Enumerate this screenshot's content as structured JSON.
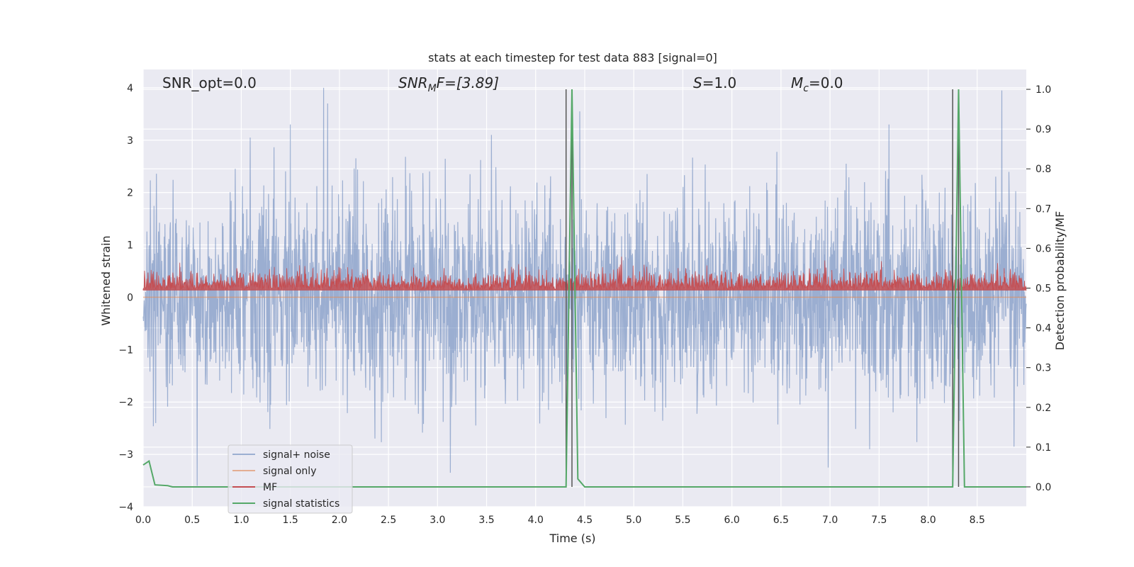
{
  "chart_data": {
    "type": "line",
    "title": "stats at each timestep for test data 883 [signal=0]",
    "xlabel": "Time (s)",
    "ylabel": "Whitened strain",
    "y2label": "Detection probability/MF",
    "xlim": [
      0.0,
      9.0
    ],
    "ylim": [
      -4,
      4.35
    ],
    "y2lim": [
      -0.05,
      1.05
    ],
    "xticks": [
      "0.0",
      "0.5",
      "1.0",
      "1.5",
      "2.0",
      "2.5",
      "3.0",
      "3.5",
      "4.0",
      "4.5",
      "5.0",
      "5.5",
      "6.0",
      "6.5",
      "7.0",
      "7.5",
      "8.0",
      "8.5"
    ],
    "yticks": [
      "−4",
      "−3",
      "−2",
      "−1",
      "0",
      "1",
      "2",
      "3",
      "4"
    ],
    "y2ticks": [
      "0.0",
      "0.1",
      "0.2",
      "0.3",
      "0.4",
      "0.5",
      "0.6",
      "0.7",
      "0.8",
      "0.9",
      "1.0"
    ],
    "grid": true,
    "legend_position": "lower-left",
    "annotations": {
      "snr_opt": "SNR_opt=0.0",
      "snr_mf": "SNR_MF=[3.89]",
      "snr_mf_base": "SNR",
      "snr_mf_sub": "M",
      "snr_mf_rest": "F=[3.89]",
      "s": "=1.0",
      "s_sym": "S",
      "mc_sym": "M",
      "mc_sub": "c",
      "mc": "=0.0"
    },
    "colors": {
      "noise": "#4c72b0",
      "signal_only": "#dd8452",
      "mf": "#c44e52",
      "stats": "#55a868",
      "vline": "#555555",
      "background": "#eaeaf2"
    },
    "series": [
      {
        "name": "signal+ noise",
        "axis": "left",
        "description_values": "dense noise, amplitude mostly within ±2, peaks to ~4.0 near t=1.84",
        "notable_peaks": [
          {
            "x": 1.84,
            "y": 4.0
          },
          {
            "x": 1.88,
            "y": 3.7
          },
          {
            "x": 1.5,
            "y": 3.3
          },
          {
            "x": 1.09,
            "y": 3.05
          },
          {
            "x": 3.55,
            "y": 3.1
          },
          {
            "x": 4.45,
            "y": 3.55
          },
          {
            "x": 7.6,
            "y": 3.3
          },
          {
            "x": 8.75,
            "y": 3.95
          },
          {
            "x": 0.55,
            "y": -3.6
          },
          {
            "x": 3.13,
            "y": -3.35
          },
          {
            "x": 6.98,
            "y": -3.25
          }
        ],
        "envelope": [
          1.5,
          -1.5
        ]
      },
      {
        "name": "signal only",
        "axis": "left",
        "x": [
          0.0,
          9.0
        ],
        "y": [
          0.0,
          0.0
        ]
      },
      {
        "name": "MF",
        "axis": "right",
        "description_values": "dense band between ~0.5 and ~0.58 on right axis",
        "band": [
          0.495,
          0.56
        ]
      },
      {
        "name": "signal statistics",
        "axis": "right",
        "x": [
          0.0,
          0.06,
          0.12,
          0.25,
          0.3,
          4.25,
          4.31,
          4.37,
          4.43,
          4.5,
          8.19,
          8.25,
          8.31,
          8.37,
          9.0
        ],
        "y": [
          0.055,
          0.065,
          0.005,
          0.003,
          0.0,
          0.0,
          0.0,
          1.0,
          0.02,
          0.0,
          0.0,
          0.0,
          1.0,
          0.0,
          0.0
        ]
      }
    ],
    "vlines": [
      4.31,
      4.37,
      8.25,
      8.31
    ]
  },
  "legend": {
    "items": [
      "signal+ noise",
      "signal only",
      "MF",
      "signal statistics"
    ]
  }
}
